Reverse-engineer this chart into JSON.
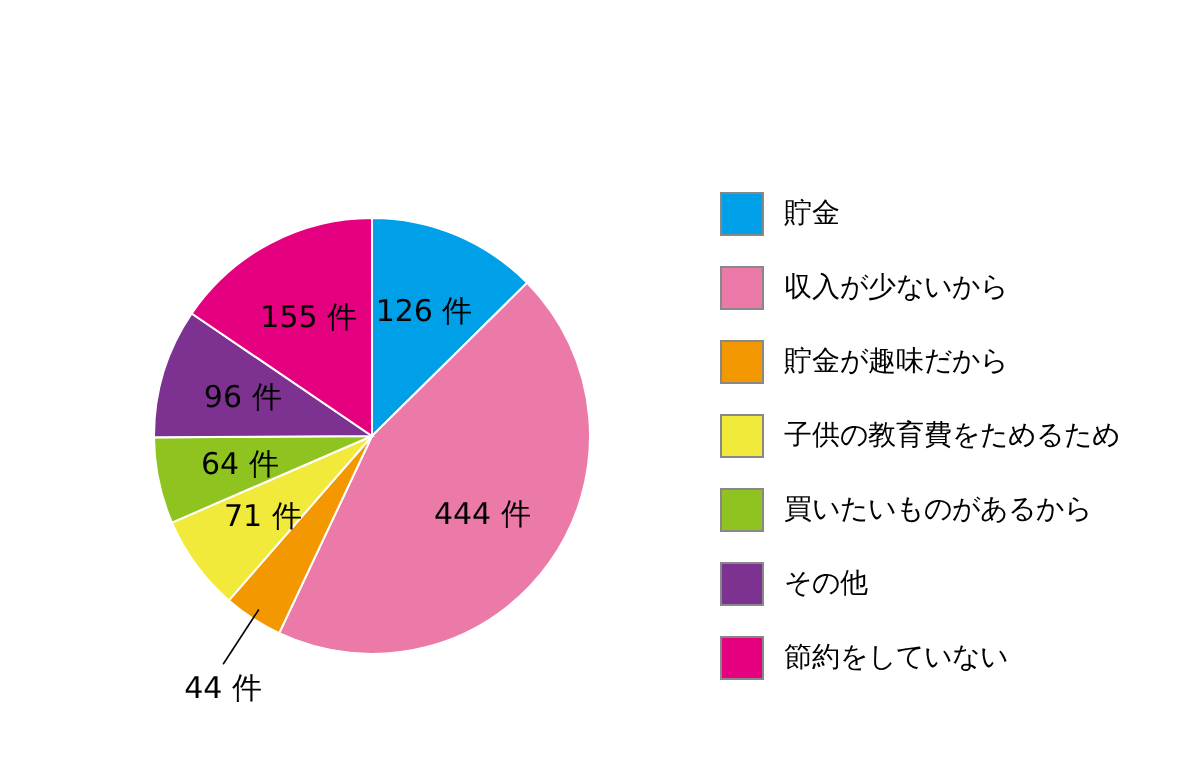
{
  "chart_data": {
    "type": "pie",
    "categories": [
      "貯金",
      "収入が少ないから",
      "貯金が趣味だから",
      "子供の教育費をためるため",
      "買いたいものがあるから",
      "その他",
      "節約をしていない"
    ],
    "values": [
      126,
      444,
      44,
      71,
      64,
      96,
      155
    ],
    "value_labels": [
      "126 件",
      "444 件",
      "44 件",
      "71 件",
      "64 件",
      "96 件",
      "155 件"
    ],
    "colors": [
      "#00a0e9",
      "#eb7aa8",
      "#f39800",
      "#f2ea3a",
      "#8fc31f",
      "#7d3190",
      "#e4007f"
    ],
    "legend": "right"
  }
}
